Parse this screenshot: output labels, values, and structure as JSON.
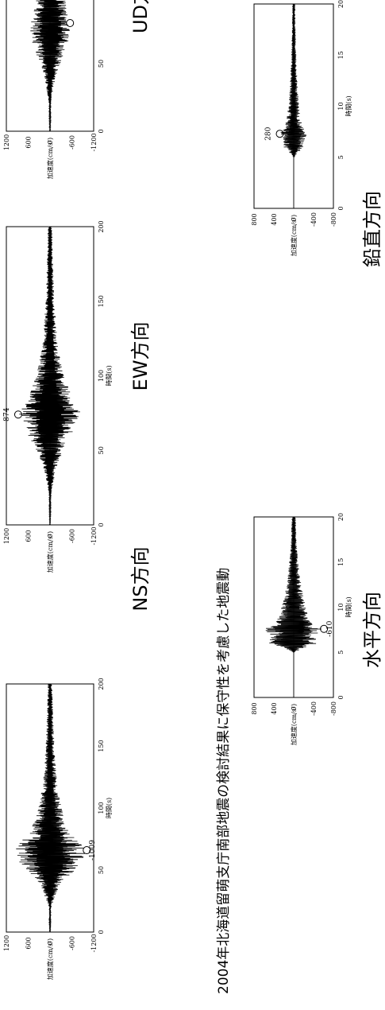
{
  "figure": {
    "title": "2004年北海道留萌支庁南部地震の検討結果に保守性を考慮した地震動"
  },
  "chart_data": [
    {
      "type": "line",
      "id": "ns",
      "caption": "NS方向",
      "xlabel": "時間(s)",
      "ylabel": "加速度(cm/s²)",
      "xlim": [
        0,
        200
      ],
      "ylim": [
        -1200,
        1200
      ],
      "xticks": [
        "0",
        "50",
        "100",
        "150",
        "200"
      ],
      "yticks": [
        "1200",
        "600",
        "0",
        "-600",
        "-1200"
      ],
      "envelope": {
        "x": [
          0,
          20,
          40,
          50,
          60,
          65,
          70,
          80,
          90,
          100,
          120,
          150,
          180,
          200
        ],
        "y": [
          10,
          30,
          300,
          700,
          1000,
          1009,
          900,
          600,
          420,
          320,
          200,
          120,
          80,
          60
        ]
      },
      "peak": {
        "x": 66,
        "y": -1009,
        "label": "-1009"
      }
    },
    {
      "type": "line",
      "id": "ew",
      "caption": "EW方向",
      "xlabel": "時間(s)",
      "ylabel": "加速度(cm/s²)",
      "xlim": [
        0,
        200
      ],
      "ylim": [
        -1200,
        1200
      ],
      "xticks": [
        "0",
        "50",
        "100",
        "150",
        "200"
      ],
      "yticks": [
        "1200",
        "600",
        "0",
        "-600",
        "-1200"
      ],
      "envelope": {
        "x": [
          0,
          20,
          40,
          55,
          65,
          75,
          85,
          100,
          120,
          150,
          180,
          200
        ],
        "y": [
          10,
          30,
          200,
          500,
          700,
          874,
          650,
          380,
          220,
          120,
          80,
          60
        ]
      },
      "peak": {
        "x": 74,
        "y": 874,
        "label": "874"
      }
    },
    {
      "type": "line",
      "id": "ud",
      "caption": "UD方向",
      "xlabel": "",
      "ylabel": "加速度(cm/s²)",
      "xlim": [
        0,
        200
      ],
      "ylim": [
        -1200,
        1200
      ],
      "xticks": [
        "0",
        "50"
      ],
      "yticks": [
        "1200",
        "600",
        "0",
        "-600",
        "-1200"
      ],
      "envelope": {
        "x": [
          0,
          20,
          40,
          55,
          65,
          75,
          85,
          100
        ],
        "y": [
          10,
          30,
          150,
          350,
          500,
          550,
          500,
          400
        ]
      },
      "peak": {
        "x": 80,
        "y": -550,
        "label": ""
      }
    },
    {
      "type": "line",
      "id": "horizontal",
      "caption": "水平方向",
      "xlabel": "時間(s)",
      "ylabel": "加速度(cm/s²)",
      "xlim": [
        0,
        20
      ],
      "ylim": [
        -800,
        800
      ],
      "xticks": [
        "0",
        "5",
        "10",
        "15",
        "20"
      ],
      "yticks": [
        "800",
        "400",
        "0",
        "-400",
        "-800"
      ],
      "envelope": {
        "x": [
          0,
          5,
          5.5,
          6,
          7,
          7.6,
          8,
          9,
          10,
          11,
          13,
          15,
          17,
          20
        ],
        "y": [
          0,
          0,
          200,
          500,
          470,
          610,
          400,
          300,
          250,
          200,
          140,
          90,
          60,
          40
        ]
      },
      "peak": {
        "x": 7.6,
        "y": -610,
        "label": "-610"
      }
    },
    {
      "type": "line",
      "id": "vertical",
      "caption": "鉛直方向",
      "xlabel": "時間(s)",
      "ylabel": "加速度(cm/s²)",
      "xlim": [
        0,
        20
      ],
      "ylim": [
        -800,
        800
      ],
      "xticks": [
        "0",
        "5",
        "10",
        "15",
        "20"
      ],
      "yticks": [
        "800",
        "400",
        "0",
        "-400",
        "-800"
      ],
      "envelope": {
        "x": [
          0,
          5,
          5.5,
          6,
          7,
          7.3,
          8,
          9,
          10,
          12,
          14,
          16,
          18,
          20
        ],
        "y": [
          0,
          0,
          100,
          200,
          240,
          280,
          180,
          140,
          110,
          80,
          60,
          45,
          35,
          30
        ]
      },
      "peak": {
        "x": 7.3,
        "y": 280,
        "label": "280"
      }
    }
  ]
}
